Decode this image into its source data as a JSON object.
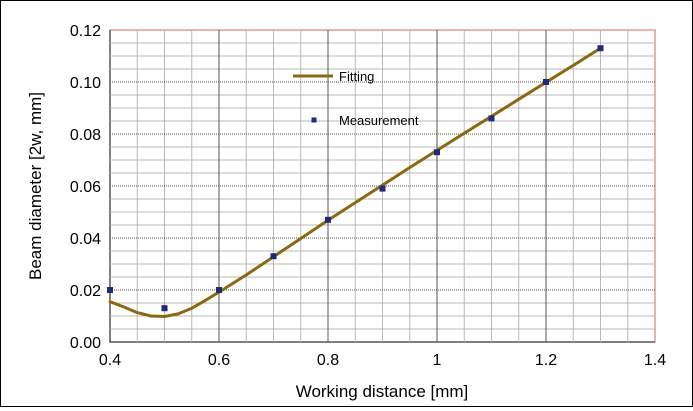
{
  "chart_data": {
    "type": "line",
    "xlabel": "Working distance [mm]",
    "ylabel": "Beam diameter [2w, mm]",
    "xlim": [
      0.4,
      1.4
    ],
    "ylim": [
      0.0,
      0.12
    ],
    "x_ticks": [
      0.4,
      0.6,
      0.8,
      1.0,
      1.2,
      1.4
    ],
    "x_tick_labels": [
      "0.4",
      "0.6",
      "0.8",
      "1",
      "1.2",
      "1.4"
    ],
    "y_ticks": [
      0.0,
      0.02,
      0.04,
      0.06,
      0.08,
      0.1,
      0.12
    ],
    "y_tick_labels": [
      "0.00",
      "0.02",
      "0.04",
      "0.06",
      "0.08",
      "0.10",
      "0.12"
    ],
    "grid": true,
    "legend_position": "upper-center",
    "series": [
      {
        "name": "Fitting",
        "kind": "line",
        "color": "#8B6914",
        "x": [
          0.4,
          0.425,
          0.45,
          0.475,
          0.5,
          0.525,
          0.55,
          0.575,
          0.6,
          0.65,
          0.7,
          0.75,
          0.8,
          0.85,
          0.9,
          0.95,
          1.0,
          1.05,
          1.1,
          1.15,
          1.2,
          1.25,
          1.3
        ],
        "y": [
          0.0155,
          0.0135,
          0.0113,
          0.01,
          0.0098,
          0.0108,
          0.013,
          0.016,
          0.0192,
          0.0258,
          0.0328,
          0.0398,
          0.0468,
          0.0536,
          0.0603,
          0.0671,
          0.0737,
          0.0803,
          0.0868,
          0.0934,
          0.0999,
          0.1064,
          0.113
        ]
      },
      {
        "name": "Measurement",
        "kind": "scatter",
        "color": "#1F2A7A",
        "x": [
          0.4,
          0.5,
          0.6,
          0.7,
          0.8,
          0.9,
          1.0,
          1.1,
          1.2,
          1.3
        ],
        "y": [
          0.02,
          0.013,
          0.02,
          0.033,
          0.047,
          0.059,
          0.073,
          0.086,
          0.1,
          0.113
        ]
      }
    ]
  }
}
